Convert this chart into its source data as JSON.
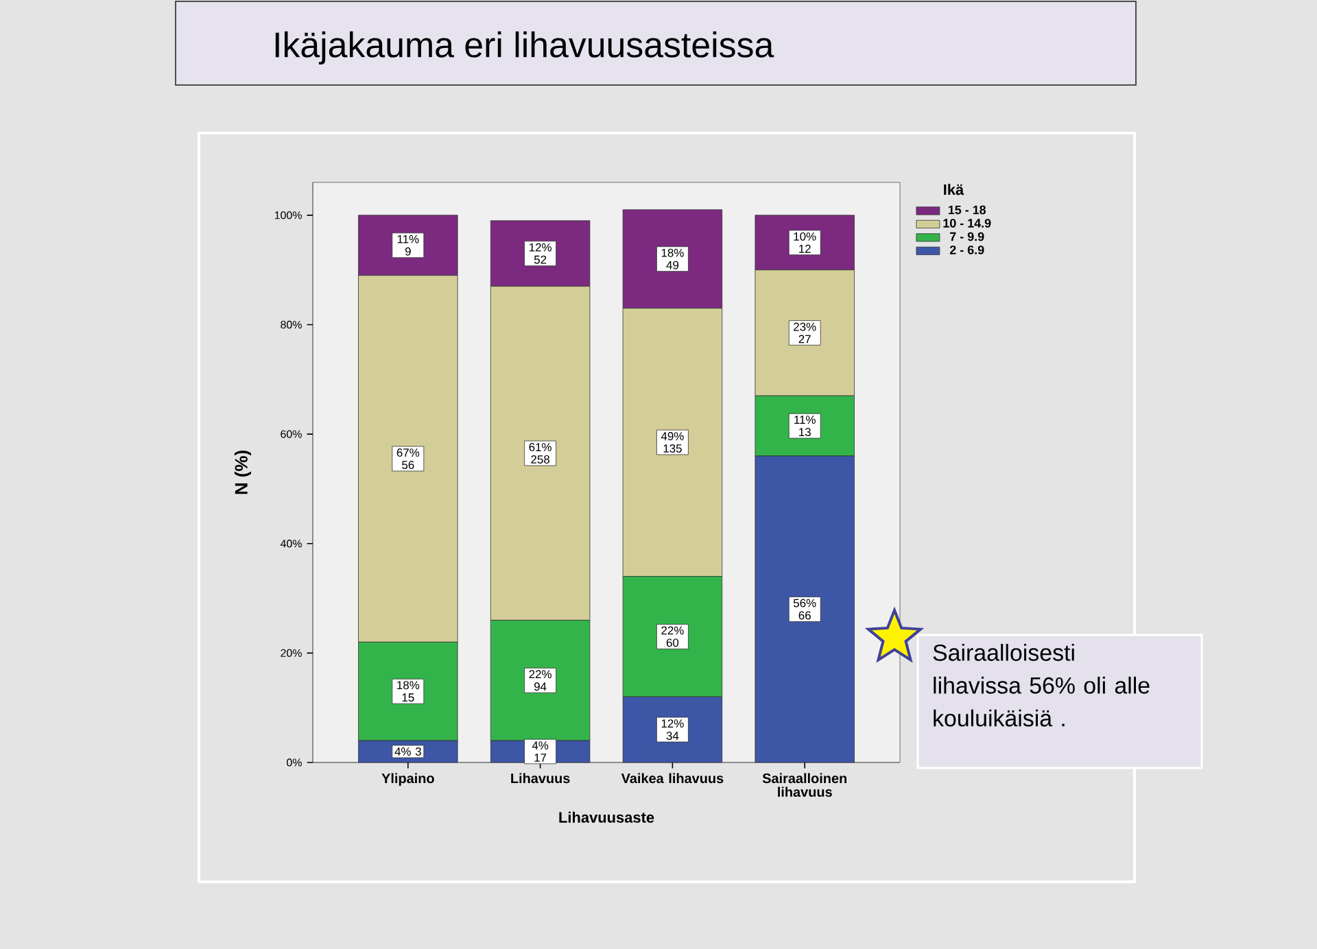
{
  "chart_data": {
    "type": "bar",
    "stacked": true,
    "title": "Ikäjakauma eri lihavuusasteissa",
    "xlabel": "Lihavuusaste",
    "ylabel": "N (%)",
    "legend_title": "Ikä",
    "legend": "right",
    "categories": [
      "Ylipaino",
      "Lihavuus",
      "Vaikea lihavuus",
      "Sairaalloinen lihavuus"
    ],
    "ylim": [
      0,
      106
    ],
    "yticks": [
      {
        "value": 0,
        "label": "0%"
      },
      {
        "value": 20,
        "label": "20%"
      },
      {
        "value": 40,
        "label": "40%"
      },
      {
        "value": 60,
        "label": "60%"
      },
      {
        "value": 80,
        "label": "80%"
      },
      {
        "value": 100,
        "label": "100%"
      }
    ],
    "series": [
      {
        "name": "2 - 6.9",
        "color": "#3d56a6",
        "values": [
          4,
          4,
          12,
          56
        ],
        "value_labels": [
          "4% 3",
          "4% 17",
          "12% 34",
          "56% 66"
        ]
      },
      {
        "name": "7 - 9.9",
        "color": "#33b44a",
        "values": [
          18,
          22,
          22,
          11
        ],
        "value_labels": [
          "18% 15",
          "22% 94",
          "22% 60",
          "11% 13"
        ]
      },
      {
        "name": "10 - 14.9",
        "color": "#d3cd98",
        "values": [
          67,
          61,
          49,
          23
        ],
        "value_labels": [
          "67% 56",
          "61% 258",
          "49% 135",
          "23% 27"
        ]
      },
      {
        "name": "15 - 18",
        "color": "#7b2a7f",
        "values": [
          11,
          12,
          18,
          10
        ],
        "value_labels": [
          "11% 9",
          "12% 52",
          "18% 49",
          "10% 12"
        ]
      }
    ],
    "annotations": [
      "Sairaalloisesti lihavissa 56% oli alle kouluikäisiä ."
    ]
  }
}
